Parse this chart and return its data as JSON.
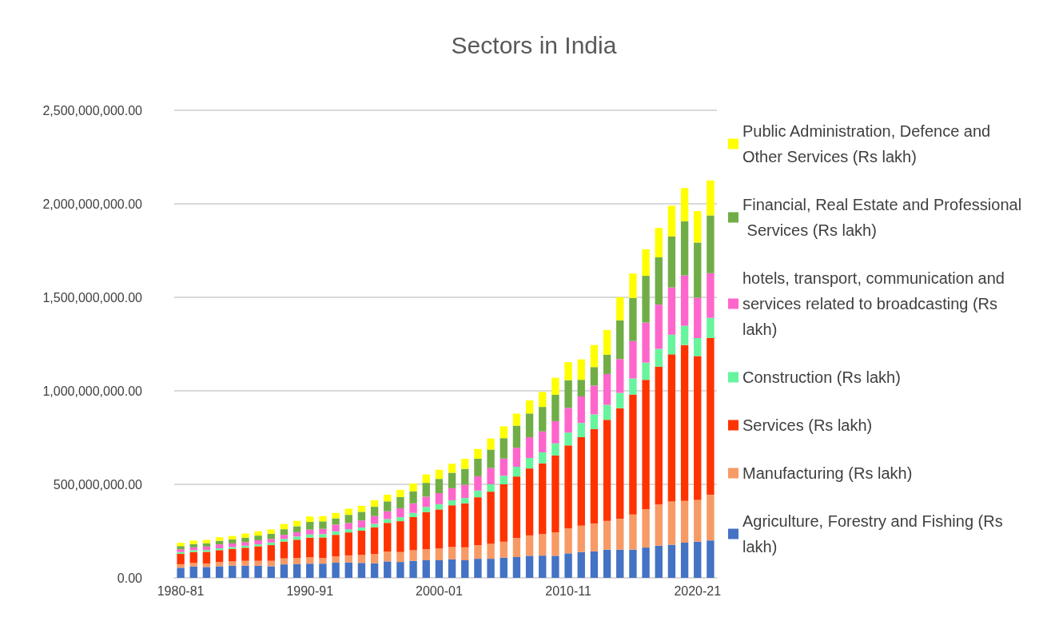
{
  "chart_data": {
    "type": "bar",
    "title": "Sectors in India",
    "stacked": true,
    "categories": [
      "1980-81",
      null,
      null,
      null,
      null,
      null,
      null,
      null,
      null,
      null,
      "1990-91",
      null,
      null,
      null,
      null,
      null,
      null,
      null,
      null,
      null,
      "2000-01",
      null,
      null,
      null,
      null,
      null,
      null,
      null,
      null,
      null,
      "2010-11",
      null,
      null,
      null,
      null,
      null,
      null,
      null,
      null,
      null,
      "2020-21",
      null
    ],
    "series": [
      {
        "name": "Agriculture, Forestry and Fishing (Rs lakh)",
        "color": "#4472c4",
        "values": [
          54000000.0,
          61000000.0,
          58000000.0,
          62000000.0,
          65000000.0,
          65000000.0,
          65000000.0,
          62000000.0,
          72000000.0,
          73000000.0,
          76000000.0,
          76000000.0,
          81000000.0,
          83000000.0,
          80000000.0,
          78000000.0,
          88000000.0,
          85000000.0,
          91000000.0,
          94000000.0,
          94000000.0,
          99000000.0,
          94000000.0,
          102000000.0,
          102000000.0,
          108000000.0,
          111000000.0,
          118000000.0,
          119000000.0,
          118000000.0,
          131000000.0,
          138000000.0,
          142000000.0,
          151000000.0,
          151000000.0,
          151000000.0,
          162000000.0,
          172000000.0,
          177000000.0,
          188000000.0,
          194000000.0,
          200000000.0
        ]
      },
      {
        "name": "Manufacturing (Rs lakh)",
        "color": "#f79a66",
        "values": [
          19000000.0,
          19000000.0,
          19000000.0,
          23000000.0,
          23000000.0,
          26000000.0,
          26000000.0,
          29000000.0,
          32000000.0,
          33000000.0,
          34000000.0,
          30000000.0,
          33000000.0,
          37000000.0,
          42000000.0,
          50000000.0,
          53000000.0,
          53000000.0,
          56000000.0,
          59000000.0,
          63000000.0,
          66000000.0,
          69000000.0,
          73000000.0,
          80000000.0,
          85000000.0,
          102000000.0,
          109000000.0,
          115000000.0,
          126000000.0,
          134000000.0,
          141000000.0,
          147000000.0,
          154000000.0,
          165000000.0,
          188000000.0,
          204000000.0,
          220000000.0,
          231000000.0,
          223000000.0,
          223000000.0,
          244000000.0
        ]
      },
      {
        "name": "Services (Rs lakh)",
        "color": "#ff3300",
        "values": [
          55000000.0,
          58000000.0,
          62000000.0,
          63000000.0,
          66000000.0,
          70000000.0,
          78000000.0,
          84000000.0,
          90000000.0,
          98000000.0,
          105000000.0,
          110000000.0,
          116000000.0,
          123000000.0,
          130000000.0,
          143000000.0,
          153000000.0,
          165000000.0,
          178000000.0,
          199000000.0,
          209000000.0,
          223000000.0,
          235000000.0,
          256000000.0,
          279000000.0,
          307000000.0,
          329000000.0,
          358000000.0,
          378000000.0,
          410000000.0,
          443000000.0,
          473000000.0,
          506000000.0,
          540000000.0,
          591000000.0,
          641000000.0,
          693000000.0,
          737000000.0,
          787000000.0,
          834000000.0,
          769000000.0,
          838000000.0
        ]
      },
      {
        "name": "Construction (Rs lakh)",
        "color": "#66f59c",
        "values": [
          10000000.0,
          10000000.0,
          10000000.0,
          10000000.0,
          11000000.0,
          11000000.0,
          11000000.0,
          14000000.0,
          14000000.0,
          17000000.0,
          17000000.0,
          18000000.0,
          19000000.0,
          17000000.0,
          17000000.0,
          18000000.0,
          20000000.0,
          21000000.0,
          22000000.0,
          27000000.0,
          28000000.0,
          27000000.0,
          29000000.0,
          36000000.0,
          39000000.0,
          46000000.0,
          52000000.0,
          56000000.0,
          59000000.0,
          65000000.0,
          69000000.0,
          76000000.0,
          79000000.0,
          80000000.0,
          82000000.0,
          86000000.0,
          92000000.0,
          95000000.0,
          105000000.0,
          103000000.0,
          96000000.0,
          108000000.0
        ]
      },
      {
        "name": "hotels, transport, communication and services related to broadcasting (Rs lakh)",
        "color": "#ff66cc",
        "values": [
          15000000.0,
          15000000.0,
          18000000.0,
          21000000.0,
          19000000.0,
          19000000.0,
          21000000.0,
          19000000.0,
          22000000.0,
          23000000.0,
          26000000.0,
          28000000.0,
          36000000.0,
          33000000.0,
          38000000.0,
          41000000.0,
          42000000.0,
          48000000.0,
          52000000.0,
          55000000.0,
          59000000.0,
          64000000.0,
          71000000.0,
          76000000.0,
          87000000.0,
          92000000.0,
          102000000.0,
          111000000.0,
          112000000.0,
          119000000.0,
          132000000.0,
          142000000.0,
          154000000.0,
          165000000.0,
          181000000.0,
          200000000.0,
          214000000.0,
          237000000.0,
          253000000.0,
          269000000.0,
          216000000.0,
          239000000.0
        ]
      },
      {
        "name": "Financial, Real Estate and Professional Services (Rs lakh)",
        "color": "#70ad47",
        "values": [
          17000000.0,
          18000000.0,
          18000000.0,
          19000000.0,
          21000000.0,
          23000000.0,
          25000000.0,
          28000000.0,
          30000000.0,
          32000000.0,
          41000000.0,
          40000000.0,
          33000000.0,
          44000000.0,
          46000000.0,
          50000000.0,
          53000000.0,
          60000000.0,
          64000000.0,
          74000000.0,
          76000000.0,
          83000000.0,
          85000000.0,
          94000000.0,
          99000000.0,
          109000000.0,
          118000000.0,
          127000000.0,
          131000000.0,
          141000000.0,
          148000000.0,
          89000000.0,
          99000000.0,
          103000000.0,
          207000000.0,
          230000000.0,
          250000000.0,
          253000000.0,
          272000000.0,
          290000000.0,
          295000000.0,
          309000000.0
        ]
      },
      {
        "name": "Public Administration, Defence and Other Services (Rs lakh)",
        "color": "#ffff00",
        "values": [
          17000000.0,
          18000000.0,
          18000000.0,
          19000000.0,
          19000000.0,
          23000000.0,
          23000000.0,
          23000000.0,
          28000000.0,
          29000000.0,
          29000000.0,
          28000000.0,
          29000000.0,
          33000000.0,
          32000000.0,
          35000000.0,
          36000000.0,
          38000000.0,
          41000000.0,
          45000000.0,
          49000000.0,
          48000000.0,
          53000000.0,
          52000000.0,
          59000000.0,
          63000000.0,
          64000000.0,
          70000000.0,
          80000000.0,
          91000000.0,
          96000000.0,
          109000000.0,
          118000000.0,
          132000000.0,
          124000000.0,
          131000000.0,
          142000000.0,
          157000000.0,
          165000000.0,
          177000000.0,
          168000000.0,
          187000000.0
        ]
      }
    ],
    "ylim": [
      0,
      2500000000
    ],
    "yticks": [
      {
        "value": 0,
        "label": "0.00"
      },
      {
        "value": 500000000,
        "label": "500,000,000.00"
      },
      {
        "value": 1000000000,
        "label": "1,000,000,000.00"
      },
      {
        "value": 1500000000,
        "label": "1,500,000,000.00"
      },
      {
        "value": 2000000000,
        "label": "2,000,000,000.00"
      },
      {
        "value": 2500000000,
        "label": "2,500,000,000.00"
      }
    ],
    "grid": "y",
    "legend": "right"
  }
}
